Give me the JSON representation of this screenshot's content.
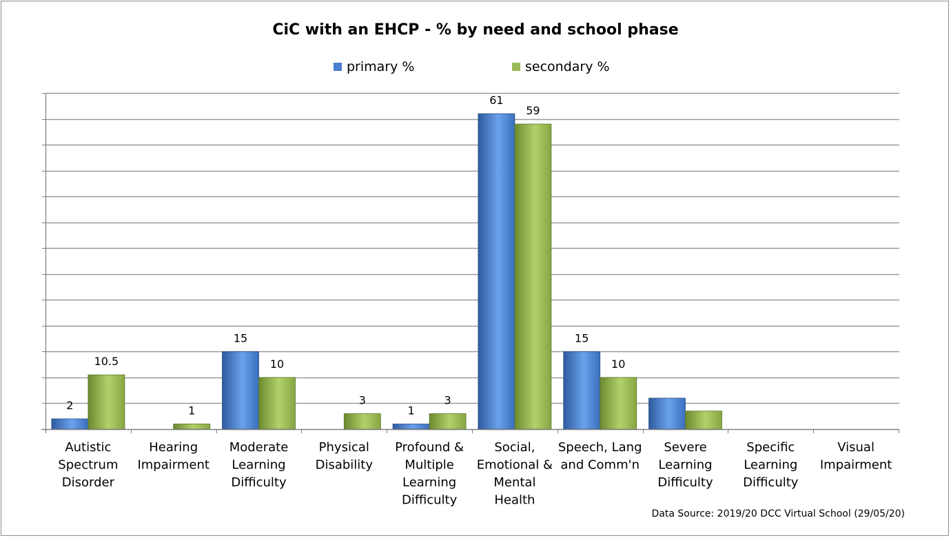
{
  "chart_data": {
    "type": "bar",
    "title": "CiC with an EHCP  - % by need and school phase",
    "categories": [
      [
        "Autistic",
        "Spectrum",
        "Disorder"
      ],
      [
        "Hearing",
        "Impairment"
      ],
      [
        "Moderate",
        "Learning",
        "Difficulty"
      ],
      [
        "Physical",
        "Disability"
      ],
      [
        "Profound &",
        "Multiple",
        "Learning",
        "Difficulty"
      ],
      [
        "Social,",
        "Emotional &",
        "Mental",
        "Health"
      ],
      [
        "Speech, Lang",
        "and Comm'n"
      ],
      [
        "Severe",
        "Learning",
        "Difficulty"
      ],
      [
        "Specific",
        "Learning",
        "Difficulty"
      ],
      [
        "Visual",
        "Impairment"
      ]
    ],
    "series": [
      {
        "name": "primary %",
        "color": "#4a7fd0",
        "values": [
          2,
          0,
          15,
          0,
          1,
          61,
          15,
          6,
          0,
          0
        ],
        "labels": [
          "2",
          "",
          "15",
          "",
          "1",
          "61",
          "15",
          "",
          "",
          ""
        ]
      },
      {
        "name": "secondary %",
        "color": "#9bbb59",
        "values": [
          10.5,
          1,
          10,
          3,
          3,
          59,
          10,
          3.5,
          0,
          0
        ],
        "labels": [
          "10.5",
          "1",
          "10",
          "3",
          "3",
          "59",
          "10",
          "",
          "",
          ""
        ]
      }
    ],
    "ylim": [
      0,
      65
    ],
    "grid": true,
    "legend": "top-center"
  },
  "footer": {
    "source": "Data Source: 2019/20 DCC Virtual School (29/05/20)"
  }
}
